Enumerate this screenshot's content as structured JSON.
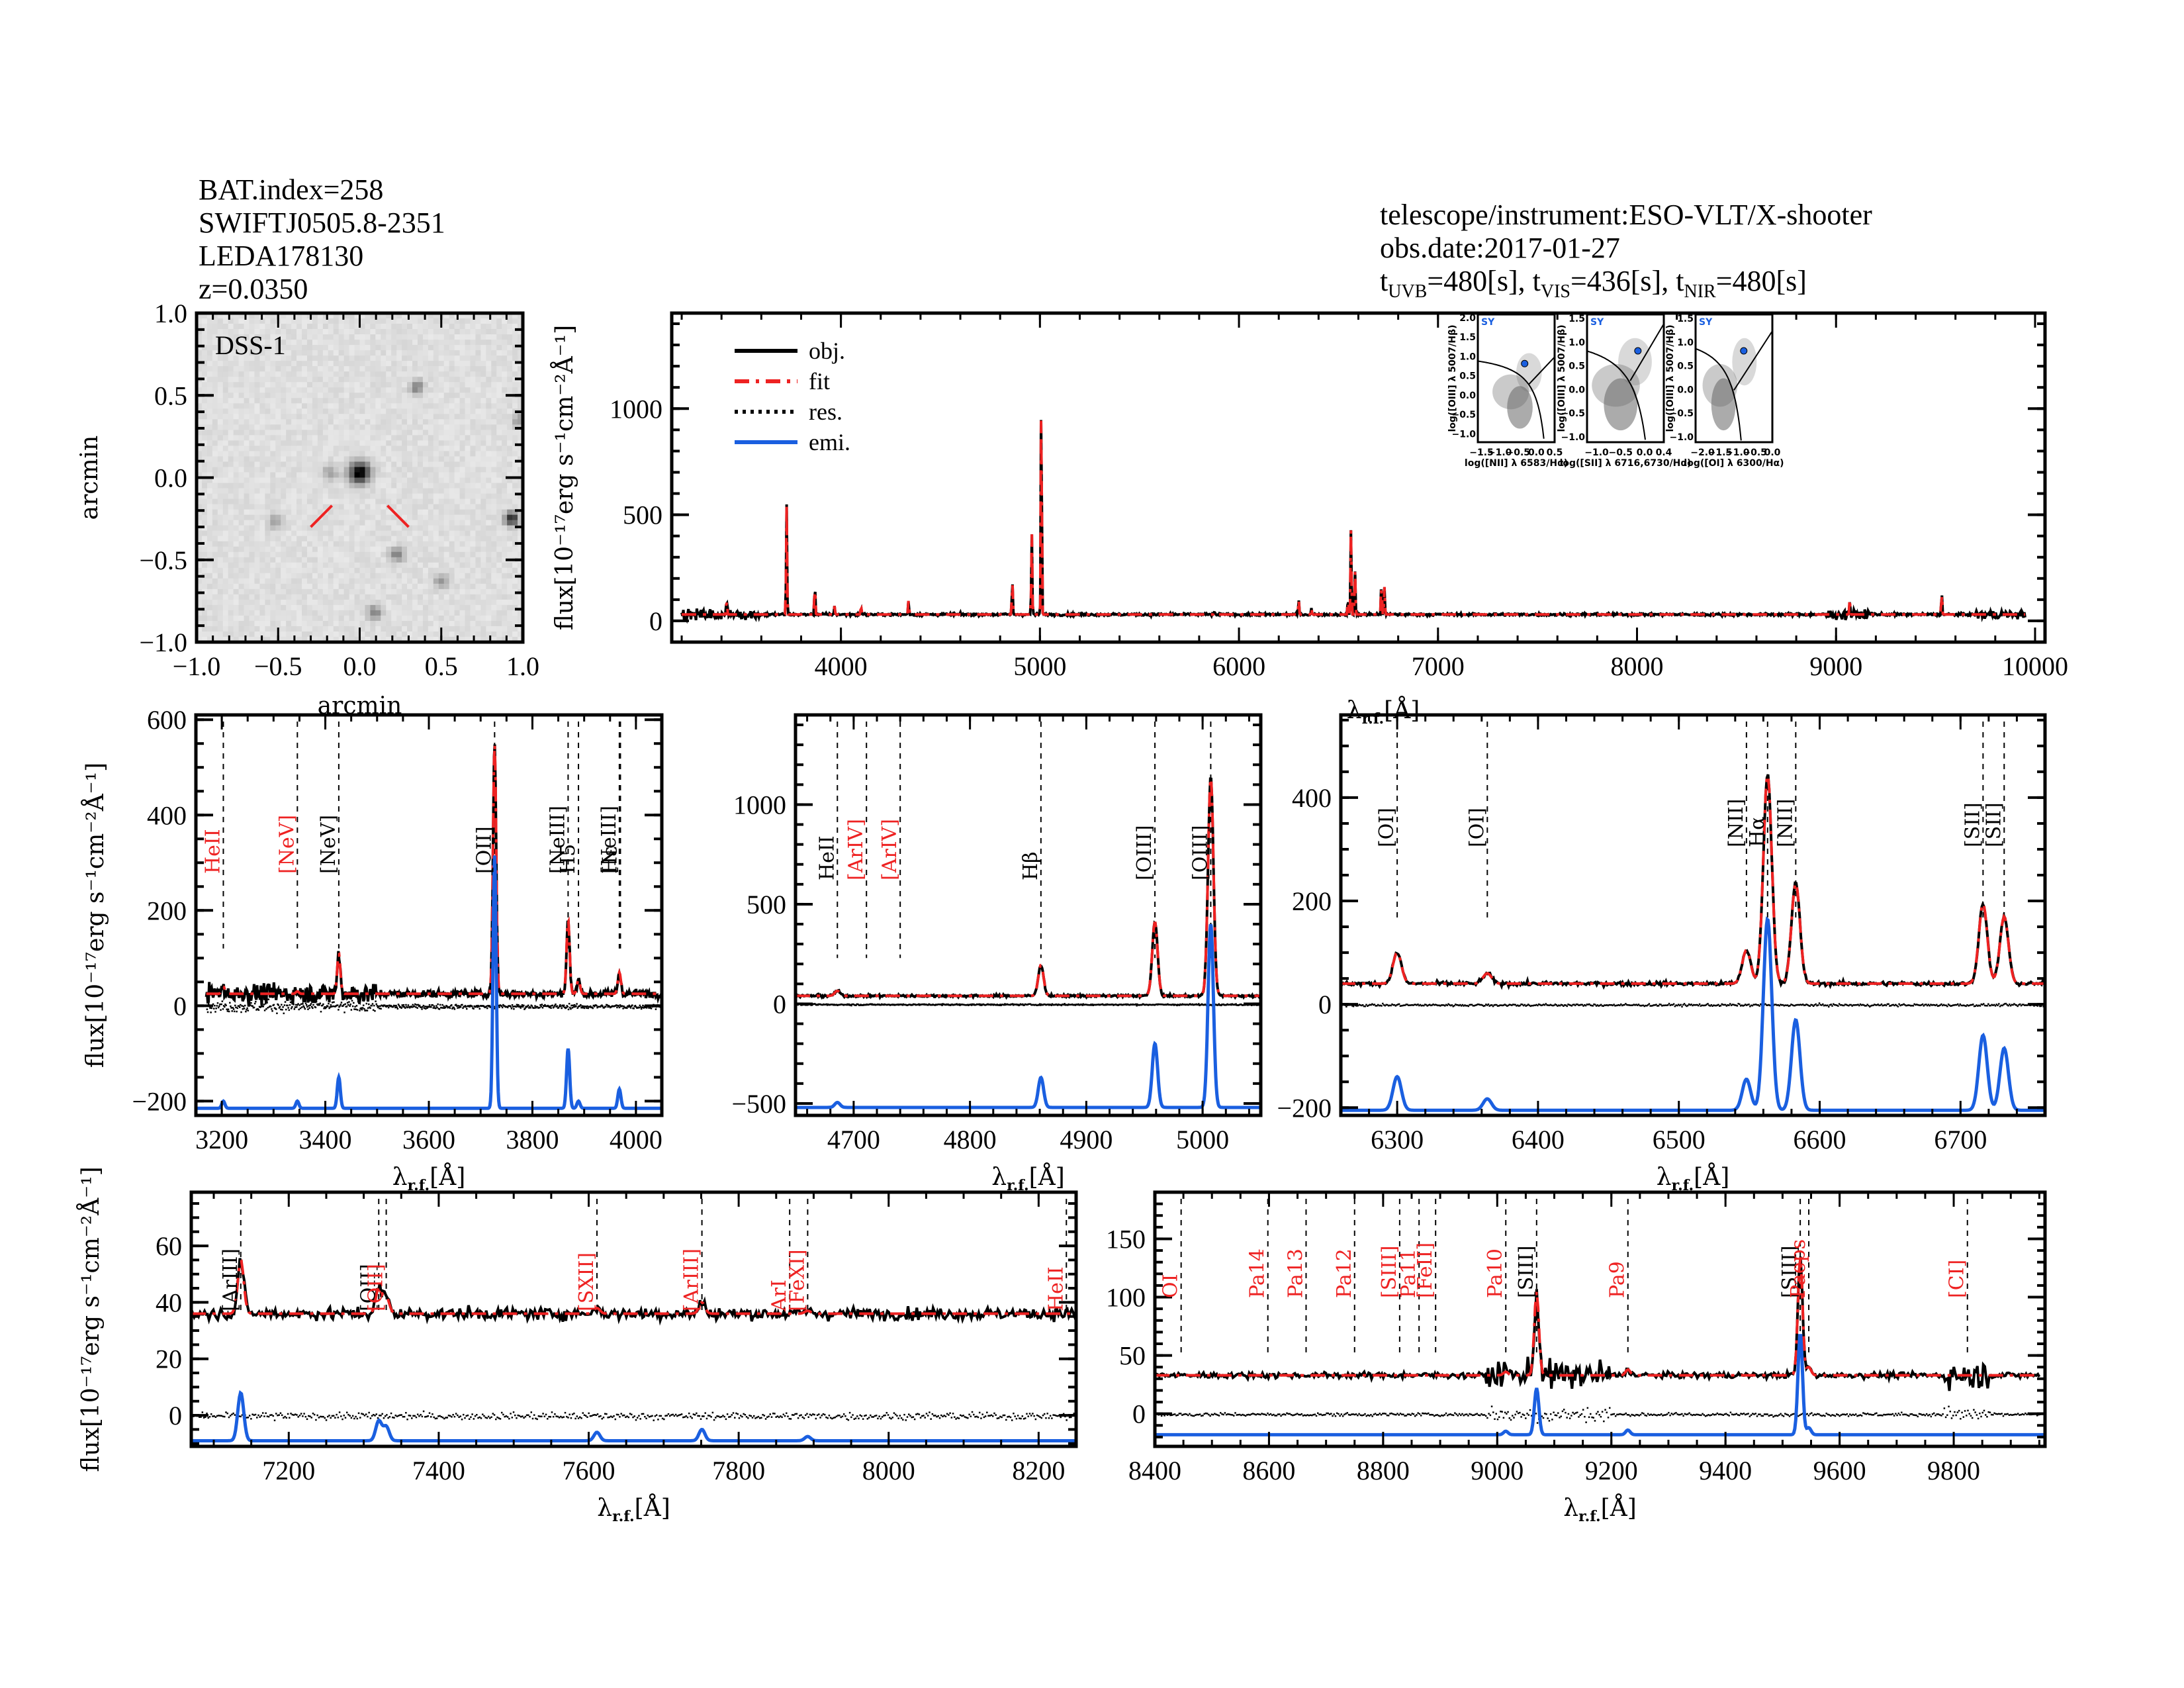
{
  "header_left": {
    "lines": [
      "BAT.index=258",
      "SWIFTJ0505.8-2351",
      "LEDA178130",
      "z=0.0350"
    ]
  },
  "header_right": {
    "instrument": "telescope/instrument:ESO-VLT/X-shooter",
    "obs_date": "obs.date:2017-01-27",
    "exposures": [
      {
        "band": "UVB",
        "value": "=480[s]"
      },
      {
        "band": "VIS",
        "value": "=436[s]"
      },
      {
        "band": "NIR",
        "value": "=480[s]"
      }
    ]
  },
  "colors": {
    "obj": "#000000",
    "fit": "#ee2222",
    "res": "#000000",
    "emi": "#1a5fe0",
    "label_red": "#ee2222",
    "bpt_point": "#1a5fe0"
  },
  "labels": {
    "flux_axis": "flux[10⁻¹⁷erg s⁻¹cm⁻²Å⁻¹]",
    "wave_axis_top": "λr.f.[Å]",
    "wave_axis": "λr.f.[Å]",
    "arcmin": "arcmin"
  },
  "chart_data": [
    {
      "id": "dss-image",
      "type": "heatmap",
      "title": "DSS-1",
      "xlabel": "arcmin",
      "ylabel": "arcmin",
      "xlim": [
        -1.0,
        1.0
      ],
      "ylim": [
        -1.0,
        1.0
      ],
      "xticks": [
        "-1.0",
        "-0.5",
        "0.0",
        "0.5",
        "1.0"
      ],
      "yticks": [
        "-1.0",
        "-0.5",
        "0.0",
        "0.5",
        "1.0"
      ],
      "sources": [
        {
          "x": 0.0,
          "y": 0.03,
          "brightness": 1.0
        },
        {
          "x": 0.93,
          "y": -0.25,
          "brightness": 0.8
        },
        {
          "x": 0.35,
          "y": 0.55,
          "brightness": 0.4
        },
        {
          "x": -0.52,
          "y": -0.27,
          "brightness": 0.3
        },
        {
          "x": 0.23,
          "y": -0.47,
          "brightness": 0.4
        },
        {
          "x": 0.5,
          "y": -0.63,
          "brightness": 0.3
        },
        {
          "x": 0.09,
          "y": -0.82,
          "brightness": 0.4
        },
        {
          "x": -0.18,
          "y": 0.03,
          "brightness": 0.3
        },
        {
          "x": 0.98,
          "y": 0.35,
          "brightness": 0.3
        }
      ],
      "marker_color": "#ee2222"
    },
    {
      "id": "full-spectrum",
      "type": "line",
      "xlabel": "λr.f.[Å]",
      "ylabel": "flux[10⁻¹⁷erg s⁻¹cm⁻²Å⁻¹]",
      "xlim": [
        3150,
        10050
      ],
      "ylim": [
        -100,
        1450
      ],
      "xticks": [
        4000,
        5000,
        6000,
        7000,
        8000,
        9000,
        10000
      ],
      "yticks": [
        0,
        500,
        1000
      ],
      "legend": [
        "obj.",
        "fit",
        "res.",
        "emi."
      ],
      "legend_position": "top-left",
      "continuum": 30,
      "peaks": [
        {
          "x": 3426,
          "y": 110
        },
        {
          "x": 3727,
          "y": 550
        },
        {
          "x": 3869,
          "y": 180
        },
        {
          "x": 3968,
          "y": 70
        },
        {
          "x": 4101,
          "y": 70
        },
        {
          "x": 4340,
          "y": 100
        },
        {
          "x": 4861,
          "y": 190
        },
        {
          "x": 4959,
          "y": 410
        },
        {
          "x": 5007,
          "y": 1140
        },
        {
          "x": 5876,
          "y": 40
        },
        {
          "x": 6300,
          "y": 100
        },
        {
          "x": 6364,
          "y": 60
        },
        {
          "x": 6548,
          "y": 105
        },
        {
          "x": 6563,
          "y": 445
        },
        {
          "x": 6583,
          "y": 235
        },
        {
          "x": 6716,
          "y": 190
        },
        {
          "x": 6731,
          "y": 160
        },
        {
          "x": 9069,
          "y": 105
        },
        {
          "x": 9531,
          "y": 135
        }
      ]
    },
    {
      "id": "bpt-nii",
      "type": "scatter",
      "label": "SY",
      "xlabel": "log([NII] λ 6583/Hα)",
      "ylabel": "log([OIII] λ 5007/Hβ)",
      "xlim": [
        -1.6,
        0.5
      ],
      "ylim": [
        -1.2,
        2.1
      ],
      "xticks": [
        "-1.5",
        "-1.0",
        "-0.5",
        "0.0",
        "0.5"
      ],
      "yticks": [
        "-1.0",
        "-0.5",
        "0.0",
        "0.5",
        "1.0",
        "1.5",
        "2.0"
      ],
      "point": {
        "x": -0.32,
        "y": 0.83
      }
    },
    {
      "id": "bpt-sii",
      "type": "scatter",
      "label": "SY",
      "xlabel": "log([SII] λ 6716,6730/Hα)",
      "ylabel": "log([OIII] λ 5007/Hβ)",
      "xlim": [
        -1.2,
        0.4
      ],
      "ylim": [
        -1.1,
        1.6
      ],
      "xticks": [
        "-1.0",
        "-0.5",
        "0.0",
        "0.4"
      ],
      "yticks": [
        "-1.0",
        "-0.5",
        "0.0",
        "0.5",
        "1.0",
        "1.5"
      ],
      "point": {
        "x": -0.14,
        "y": 0.83
      }
    },
    {
      "id": "bpt-oi",
      "type": "scatter",
      "label": "SY",
      "xlabel": "log([OI] λ 6300/Hα)",
      "ylabel": "log([OIII] λ 5007/Hβ)",
      "xlim": [
        -2.2,
        0.0
      ],
      "ylim": [
        -1.1,
        1.6
      ],
      "xticks": [
        "-2.0",
        "-1.5",
        "-1.0",
        "-0.5",
        "0.0"
      ],
      "yticks": [
        "-1.0",
        "-0.5",
        "0.0",
        "0.5",
        "1.0",
        "1.5"
      ],
      "point": {
        "x": -0.82,
        "y": 0.83
      }
    },
    {
      "id": "zoom-uv",
      "type": "line",
      "xlabel": "λr.f.[Å]",
      "ylabel": "flux[10⁻¹⁷erg s⁻¹cm⁻²Å⁻¹]",
      "xlim": [
        3150,
        4050
      ],
      "ylim": [
        -230,
        610
      ],
      "xticks": [
        3200,
        3400,
        3600,
        3800,
        4000
      ],
      "yticks": [
        -200,
        0,
        200,
        400,
        600
      ],
      "continuum": 25,
      "emi_base": -215,
      "lines": [
        {
          "label": "HeII",
          "x": 3203,
          "color": "red"
        },
        {
          "label": "[NeV]",
          "x": 3346,
          "color": "red"
        },
        {
          "label": "[NeV]",
          "x": 3426,
          "color": "black"
        },
        {
          "label": "[OII]",
          "x": 3727,
          "color": "black"
        },
        {
          "label": "[NeIII]",
          "x": 3869,
          "color": "black"
        },
        {
          "label": "H5",
          "x": 3889,
          "color": "black"
        },
        {
          "label": "[NeIII]",
          "x": 3968,
          "color": "black"
        },
        {
          "label": "Hε",
          "x": 3970,
          "color": "black"
        }
      ],
      "peaks": [
        {
          "x": 3203,
          "obj": 40,
          "emi": 15
        },
        {
          "x": 3346,
          "obj": 30,
          "emi": 15
        },
        {
          "x": 3426,
          "obj": 110,
          "emi": 65
        },
        {
          "x": 3727,
          "obj": 550,
          "emi": 530
        },
        {
          "x": 3869,
          "obj": 180,
          "emi": 125
        },
        {
          "x": 3889,
          "obj": 55,
          "emi": 15
        },
        {
          "x": 3968,
          "obj": 70,
          "emi": 40
        }
      ]
    },
    {
      "id": "zoom-hb-oiii",
      "type": "line",
      "xlabel": "λr.f.[Å]",
      "ylabel": "",
      "xlim": [
        4650,
        5050
      ],
      "ylim": [
        -560,
        1450
      ],
      "xticks": [
        4700,
        4800,
        4900,
        5000
      ],
      "yticks": [
        -500,
        0,
        500,
        1000
      ],
      "continuum": 40,
      "emi_base": -520,
      "lines": [
        {
          "label": "HeII",
          "x": 4686,
          "color": "black"
        },
        {
          "label": "[ArIV]",
          "x": 4711,
          "color": "red"
        },
        {
          "label": "[ArIV]",
          "x": 4740,
          "color": "red"
        },
        {
          "label": "Hβ",
          "x": 4861,
          "color": "black"
        },
        {
          "label": "[OIII]",
          "x": 4959,
          "color": "black"
        },
        {
          "label": "[OIII]",
          "x": 5007,
          "color": "black"
        }
      ],
      "peaks": [
        {
          "x": 4686,
          "obj": 65,
          "emi": 25
        },
        {
          "x": 4861,
          "obj": 195,
          "emi": 150
        },
        {
          "x": 4959,
          "obj": 410,
          "emi": 320
        },
        {
          "x": 5007,
          "obj": 1140,
          "emi": 920
        }
      ]
    },
    {
      "id": "zoom-ha-nii-sii",
      "type": "line",
      "xlabel": "λr.f.[Å]",
      "ylabel": "",
      "xlim": [
        6260,
        6760
      ],
      "ylim": [
        -215,
        560
      ],
      "xticks": [
        6300,
        6400,
        6500,
        6600,
        6700
      ],
      "yticks": [
        -200,
        0,
        200,
        400
      ],
      "continuum": 40,
      "emi_base": -205,
      "lines": [
        {
          "label": "[OI]",
          "x": 6300,
          "color": "black"
        },
        {
          "label": "[OI]",
          "x": 6364,
          "color": "black"
        },
        {
          "label": "[NII]",
          "x": 6548,
          "color": "black"
        },
        {
          "label": "Hα",
          "x": 6563,
          "color": "black"
        },
        {
          "label": "[NII]",
          "x": 6583,
          "color": "black"
        },
        {
          "label": "[SII]",
          "x": 6716,
          "color": "black"
        },
        {
          "label": "[SII]",
          "x": 6731,
          "color": "black"
        }
      ],
      "peaks": [
        {
          "x": 6300,
          "obj": 100,
          "emi": 65
        },
        {
          "x": 6364,
          "obj": 60,
          "emi": 22
        },
        {
          "x": 6548,
          "obj": 105,
          "emi": 60
        },
        {
          "x": 6563,
          "obj": 445,
          "emi": 370
        },
        {
          "x": 6583,
          "obj": 235,
          "emi": 175
        },
        {
          "x": 6716,
          "obj": 195,
          "emi": 145
        },
        {
          "x": 6731,
          "obj": 170,
          "emi": 120
        }
      ]
    },
    {
      "id": "zoom-red",
      "type": "line",
      "xlabel": "λr.f.[Å]",
      "ylabel": "flux[10⁻¹⁷erg s⁻¹cm⁻²Å⁻¹]",
      "xlim": [
        7070,
        8250
      ],
      "ylim": [
        -11,
        79
      ],
      "xticks": [
        7200,
        7400,
        7600,
        7800,
        8000,
        8200
      ],
      "yticks": [
        0,
        20,
        40,
        60
      ],
      "continuum": 36,
      "emi_base": -9,
      "lines": [
        {
          "label": "[ArIII]",
          "x": 7136,
          "color": "black"
        },
        {
          "label": "[OII]",
          "x": 7320,
          "color": "black"
        },
        {
          "label": "[OII]",
          "x": 7330,
          "color": "red"
        },
        {
          "label": "[SXII]",
          "x": 7611,
          "color": "red"
        },
        {
          "label": "[ArIII]",
          "x": 7751,
          "color": "red"
        },
        {
          "label": "ArI",
          "x": 7868,
          "color": "red"
        },
        {
          "label": "[FeXI]",
          "x": 7892,
          "color": "red"
        },
        {
          "label": "HeII",
          "x": 8237,
          "color": "red"
        }
      ],
      "peaks": [
        {
          "x": 7136,
          "obj": 55,
          "emi": 17
        },
        {
          "x": 7320,
          "obj": 45,
          "emi": 7
        },
        {
          "x": 7330,
          "obj": 42,
          "emi": 5
        },
        {
          "x": 7611,
          "obj": 38,
          "emi": 3
        },
        {
          "x": 7751,
          "obj": 40,
          "emi": 4
        },
        {
          "x": 7892,
          "obj": 37,
          "emi": 1.5
        }
      ]
    },
    {
      "id": "zoom-nir",
      "type": "line",
      "xlabel": "λr.f.[Å]",
      "ylabel": "",
      "xlim": [
        8400,
        9960
      ],
      "ylim": [
        -28,
        190
      ],
      "xticks": [
        8400,
        8600,
        8800,
        9000,
        9200,
        9400,
        9600,
        9800
      ],
      "yticks": [
        0,
        50,
        100,
        150
      ],
      "continuum": 33,
      "emi_base": -18,
      "lines": [
        {
          "label": "OI",
          "x": 8446,
          "color": "red"
        },
        {
          "label": "Pa14",
          "x": 8598,
          "color": "red"
        },
        {
          "label": "Pa13",
          "x": 8665,
          "color": "red"
        },
        {
          "label": "Pa12",
          "x": 8750,
          "color": "red"
        },
        {
          "label": "[SIII]",
          "x": 8829,
          "color": "red"
        },
        {
          "label": "Pa11",
          "x": 8863,
          "color": "red"
        },
        {
          "label": "[FeII]",
          "x": 8892,
          "color": "red"
        },
        {
          "label": "Pa10",
          "x": 9015,
          "color": "red"
        },
        {
          "label": "[SIII]",
          "x": 9069,
          "color": "black"
        },
        {
          "label": "Pa9",
          "x": 9229,
          "color": "red"
        },
        {
          "label": "[SIII]",
          "x": 9531,
          "color": "black"
        },
        {
          "label": "Paeps",
          "x": 9546,
          "color": "red"
        },
        {
          "label": "[CI]",
          "x": 9824,
          "color": "red"
        }
      ],
      "peaks": [
        {
          "x": 9069,
          "obj": 105,
          "emi": 40
        },
        {
          "x": 9531,
          "obj": 135,
          "emi": 87
        },
        {
          "x": 9546,
          "obj": 40,
          "emi": 6
        },
        {
          "x": 9229,
          "obj": 38,
          "emi": 4
        },
        {
          "x": 9015,
          "obj": 36,
          "emi": 3
        }
      ]
    }
  ]
}
